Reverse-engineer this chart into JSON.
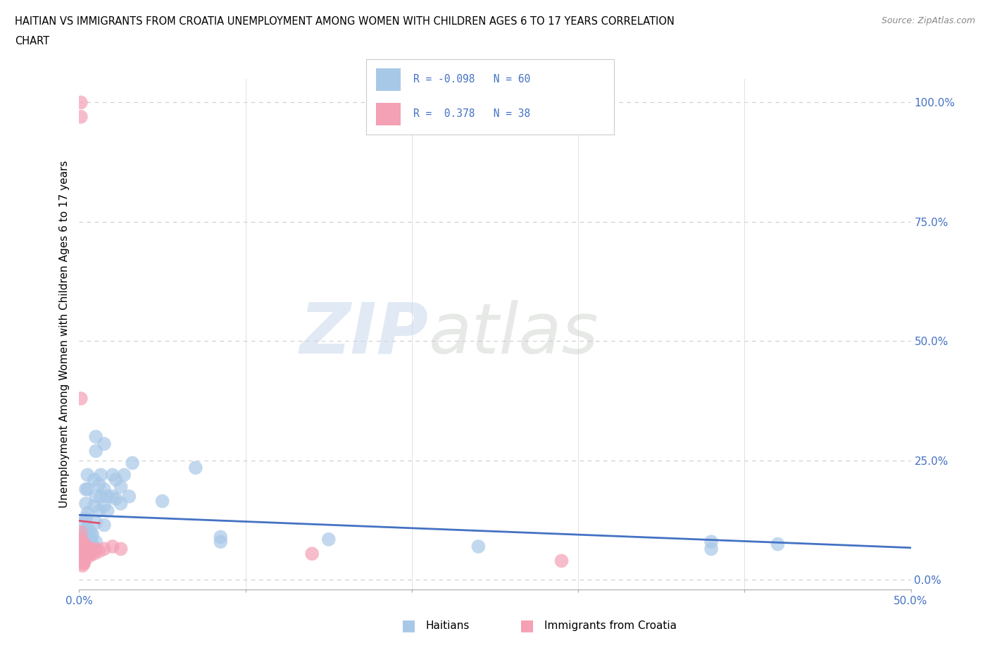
{
  "title_line1": "HAITIAN VS IMMIGRANTS FROM CROATIA UNEMPLOYMENT AMONG WOMEN WITH CHILDREN AGES 6 TO 17 YEARS CORRELATION",
  "title_line2": "CHART",
  "source": "Source: ZipAtlas.com",
  "ylabel": "Unemployment Among Women with Children Ages 6 to 17 years",
  "xlim": [
    0.0,
    0.5
  ],
  "ylim": [
    -0.02,
    1.05
  ],
  "ytick_positions": [
    0.0,
    0.25,
    0.5,
    0.75,
    1.0
  ],
  "ytick_labels": [
    "0.0%",
    "25.0%",
    "50.0%",
    "75.0%",
    "100.0%"
  ],
  "blue_color": "#a8c8e8",
  "pink_color": "#f4a0b5",
  "blue_line_color": "#4472c4",
  "pink_line_color": "#e05070",
  "blue_scatter": [
    [
      0.001,
      0.08
    ],
    [
      0.001,
      0.065
    ],
    [
      0.001,
      0.055
    ],
    [
      0.001,
      0.045
    ],
    [
      0.002,
      0.095
    ],
    [
      0.002,
      0.075
    ],
    [
      0.002,
      0.065
    ],
    [
      0.002,
      0.05
    ],
    [
      0.002,
      0.04
    ],
    [
      0.003,
      0.12
    ],
    [
      0.003,
      0.09
    ],
    [
      0.003,
      0.075
    ],
    [
      0.003,
      0.06
    ],
    [
      0.004,
      0.19
    ],
    [
      0.004,
      0.16
    ],
    [
      0.004,
      0.13
    ],
    [
      0.004,
      0.1
    ],
    [
      0.004,
      0.08
    ],
    [
      0.004,
      0.065
    ],
    [
      0.004,
      0.05
    ],
    [
      0.005,
      0.22
    ],
    [
      0.005,
      0.19
    ],
    [
      0.005,
      0.14
    ],
    [
      0.005,
      0.11
    ],
    [
      0.005,
      0.085
    ],
    [
      0.005,
      0.06
    ],
    [
      0.006,
      0.095
    ],
    [
      0.006,
      0.075
    ],
    [
      0.007,
      0.1
    ],
    [
      0.007,
      0.085
    ],
    [
      0.008,
      0.095
    ],
    [
      0.008,
      0.075
    ],
    [
      0.008,
      0.065
    ],
    [
      0.009,
      0.21
    ],
    [
      0.009,
      0.155
    ],
    [
      0.01,
      0.3
    ],
    [
      0.01,
      0.27
    ],
    [
      0.01,
      0.175
    ],
    [
      0.01,
      0.12
    ],
    [
      0.01,
      0.08
    ],
    [
      0.012,
      0.2
    ],
    [
      0.012,
      0.145
    ],
    [
      0.013,
      0.22
    ],
    [
      0.013,
      0.175
    ],
    [
      0.015,
      0.285
    ],
    [
      0.015,
      0.19
    ],
    [
      0.015,
      0.155
    ],
    [
      0.015,
      0.115
    ],
    [
      0.017,
      0.175
    ],
    [
      0.017,
      0.145
    ],
    [
      0.02,
      0.22
    ],
    [
      0.02,
      0.175
    ],
    [
      0.022,
      0.21
    ],
    [
      0.022,
      0.17
    ],
    [
      0.025,
      0.195
    ],
    [
      0.025,
      0.16
    ],
    [
      0.027,
      0.22
    ],
    [
      0.03,
      0.175
    ],
    [
      0.032,
      0.245
    ],
    [
      0.05,
      0.165
    ],
    [
      0.07,
      0.235
    ],
    [
      0.085,
      0.09
    ],
    [
      0.085,
      0.08
    ],
    [
      0.15,
      0.085
    ],
    [
      0.24,
      0.07
    ],
    [
      0.38,
      0.08
    ],
    [
      0.38,
      0.065
    ],
    [
      0.42,
      0.075
    ]
  ],
  "pink_scatter": [
    [
      0.001,
      1.0
    ],
    [
      0.001,
      0.97
    ],
    [
      0.001,
      0.38
    ],
    [
      0.001,
      0.1
    ],
    [
      0.001,
      0.085
    ],
    [
      0.001,
      0.075
    ],
    [
      0.001,
      0.065
    ],
    [
      0.001,
      0.055
    ],
    [
      0.001,
      0.045
    ],
    [
      0.001,
      0.04
    ],
    [
      0.002,
      0.08
    ],
    [
      0.002,
      0.065
    ],
    [
      0.002,
      0.055
    ],
    [
      0.002,
      0.045
    ],
    [
      0.002,
      0.035
    ],
    [
      0.002,
      0.03
    ],
    [
      0.003,
      0.075
    ],
    [
      0.003,
      0.06
    ],
    [
      0.003,
      0.05
    ],
    [
      0.003,
      0.04
    ],
    [
      0.003,
      0.035
    ],
    [
      0.004,
      0.07
    ],
    [
      0.004,
      0.055
    ],
    [
      0.005,
      0.065
    ],
    [
      0.006,
      0.06
    ],
    [
      0.006,
      0.05
    ],
    [
      0.007,
      0.065
    ],
    [
      0.007,
      0.055
    ],
    [
      0.008,
      0.06
    ],
    [
      0.009,
      0.055
    ],
    [
      0.01,
      0.065
    ],
    [
      0.012,
      0.06
    ],
    [
      0.015,
      0.065
    ],
    [
      0.02,
      0.07
    ],
    [
      0.025,
      0.065
    ],
    [
      0.14,
      0.055
    ],
    [
      0.29,
      0.04
    ]
  ],
  "watermark_zip": "ZIP",
  "watermark_atlas": "atlas",
  "background_color": "#ffffff",
  "grid_color": "#d0d0d0",
  "grid_color_dotted": "#cccccc"
}
